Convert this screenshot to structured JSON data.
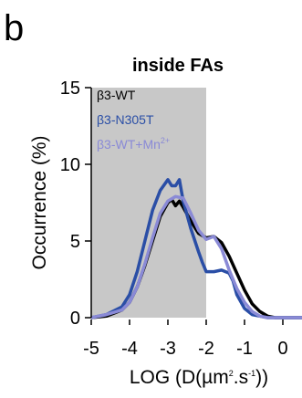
{
  "panel_label": "b",
  "chart_data": {
    "type": "line",
    "title": "inside FAs",
    "xlabel_parts": [
      "LOG (D(µm",
      "2",
      ".s",
      "-1",
      "))"
    ],
    "ylabel": "Occurrence (%)",
    "xlim": [
      -5,
      0.5
    ],
    "ylim": [
      0,
      15
    ],
    "xticks": [
      "-5",
      "-4",
      "-3",
      "-2",
      "-1",
      "0"
    ],
    "yticks": [
      "0",
      "5",
      "10",
      "15"
    ],
    "shaded_region": {
      "x": [
        -5,
        -2
      ],
      "color": "#c8c8c8"
    },
    "grid": false,
    "legend_position": "top-left",
    "series": [
      {
        "name": "β3-WT",
        "color": "#000000",
        "x": [
          -5.0,
          -4.6,
          -4.2,
          -4.0,
          -3.8,
          -3.6,
          -3.4,
          -3.2,
          -3.0,
          -2.9,
          -2.8,
          -2.7,
          -2.6,
          -2.4,
          -2.2,
          -2.0,
          -1.8,
          -1.6,
          -1.4,
          -1.2,
          -1.0,
          -0.8,
          -0.6,
          -0.4,
          -0.2,
          0.0,
          0.5
        ],
        "y": [
          0.0,
          0.1,
          0.5,
          1.0,
          2.0,
          3.4,
          5.0,
          6.6,
          7.5,
          7.7,
          7.3,
          7.6,
          7.2,
          6.3,
          5.5,
          5.2,
          5.3,
          4.9,
          4.0,
          2.9,
          1.8,
          0.9,
          0.4,
          0.1,
          0.0,
          0.0,
          0.0
        ]
      },
      {
        "name": "β3-N305T",
        "color": "#2a4ea6",
        "x": [
          -5.0,
          -4.6,
          -4.2,
          -4.0,
          -3.8,
          -3.6,
          -3.4,
          -3.2,
          -3.0,
          -2.9,
          -2.8,
          -2.7,
          -2.6,
          -2.4,
          -2.2,
          -2.1,
          -2.0,
          -1.8,
          -1.6,
          -1.4,
          -1.3,
          -1.2,
          -1.0,
          -0.8,
          -0.6,
          -0.4,
          0.0,
          0.5
        ],
        "y": [
          0.0,
          0.2,
          0.7,
          1.5,
          3.0,
          5.0,
          7.0,
          8.3,
          9.0,
          8.6,
          8.6,
          9.0,
          7.6,
          5.8,
          4.3,
          3.6,
          3.0,
          3.0,
          3.1,
          2.9,
          2.4,
          1.5,
          0.6,
          0.2,
          0.1,
          0.0,
          0.0,
          0.0
        ]
      },
      {
        "name": "β3-WT+Mn",
        "name_sup": "2+",
        "color": "#8a8ad6",
        "x": [
          -5.0,
          -4.6,
          -4.2,
          -4.0,
          -3.8,
          -3.6,
          -3.4,
          -3.2,
          -3.0,
          -2.8,
          -2.6,
          -2.4,
          -2.2,
          -2.0,
          -1.8,
          -1.6,
          -1.4,
          -1.2,
          -1.0,
          -0.8,
          -0.6,
          -0.4,
          0.0,
          0.5
        ],
        "y": [
          0.0,
          0.2,
          0.5,
          1.0,
          2.0,
          3.5,
          5.2,
          6.8,
          7.6,
          7.9,
          7.8,
          6.8,
          5.7,
          5.1,
          5.3,
          4.5,
          3.1,
          1.9,
          1.0,
          0.4,
          0.1,
          0.0,
          0.0,
          0.0
        ]
      }
    ]
  }
}
